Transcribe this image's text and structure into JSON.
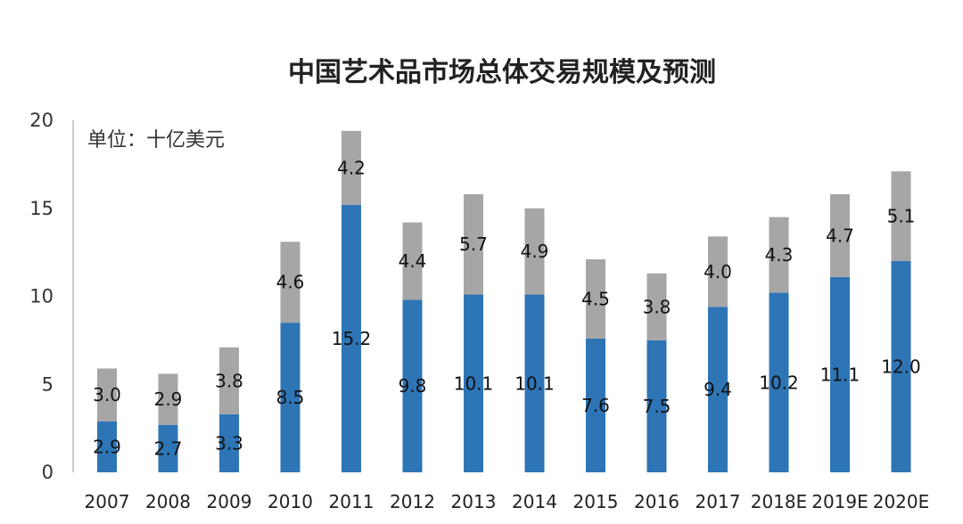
{
  "chart_data": {
    "type": "bar",
    "stacked": true,
    "title": "中国艺术品市场总体交易规模及预测",
    "unit_label": "单位：十亿美元",
    "categories": [
      "2007",
      "2008",
      "2009",
      "2010",
      "2011",
      "2012",
      "2013",
      "2014",
      "2015",
      "2016",
      "2017",
      "2018E",
      "2019E",
      "2020E"
    ],
    "series": [
      {
        "values": [
          2.9,
          2.7,
          3.3,
          8.5,
          15.2,
          9.8,
          10.1,
          10.1,
          7.6,
          7.5,
          9.4,
          10.2,
          11.1,
          12.0
        ],
        "color": "#2e75b6"
      },
      {
        "values": [
          3.0,
          2.9,
          3.8,
          4.6,
          4.2,
          4.4,
          5.7,
          4.9,
          4.5,
          3.8,
          4.0,
          4.3,
          4.7,
          5.1
        ],
        "color": "#a6a6a6"
      }
    ],
    "ylim": [
      0,
      20
    ],
    "yticks": [
      "0",
      "5",
      "10",
      "15",
      "20"
    ],
    "grid": false,
    "legend": "none"
  }
}
